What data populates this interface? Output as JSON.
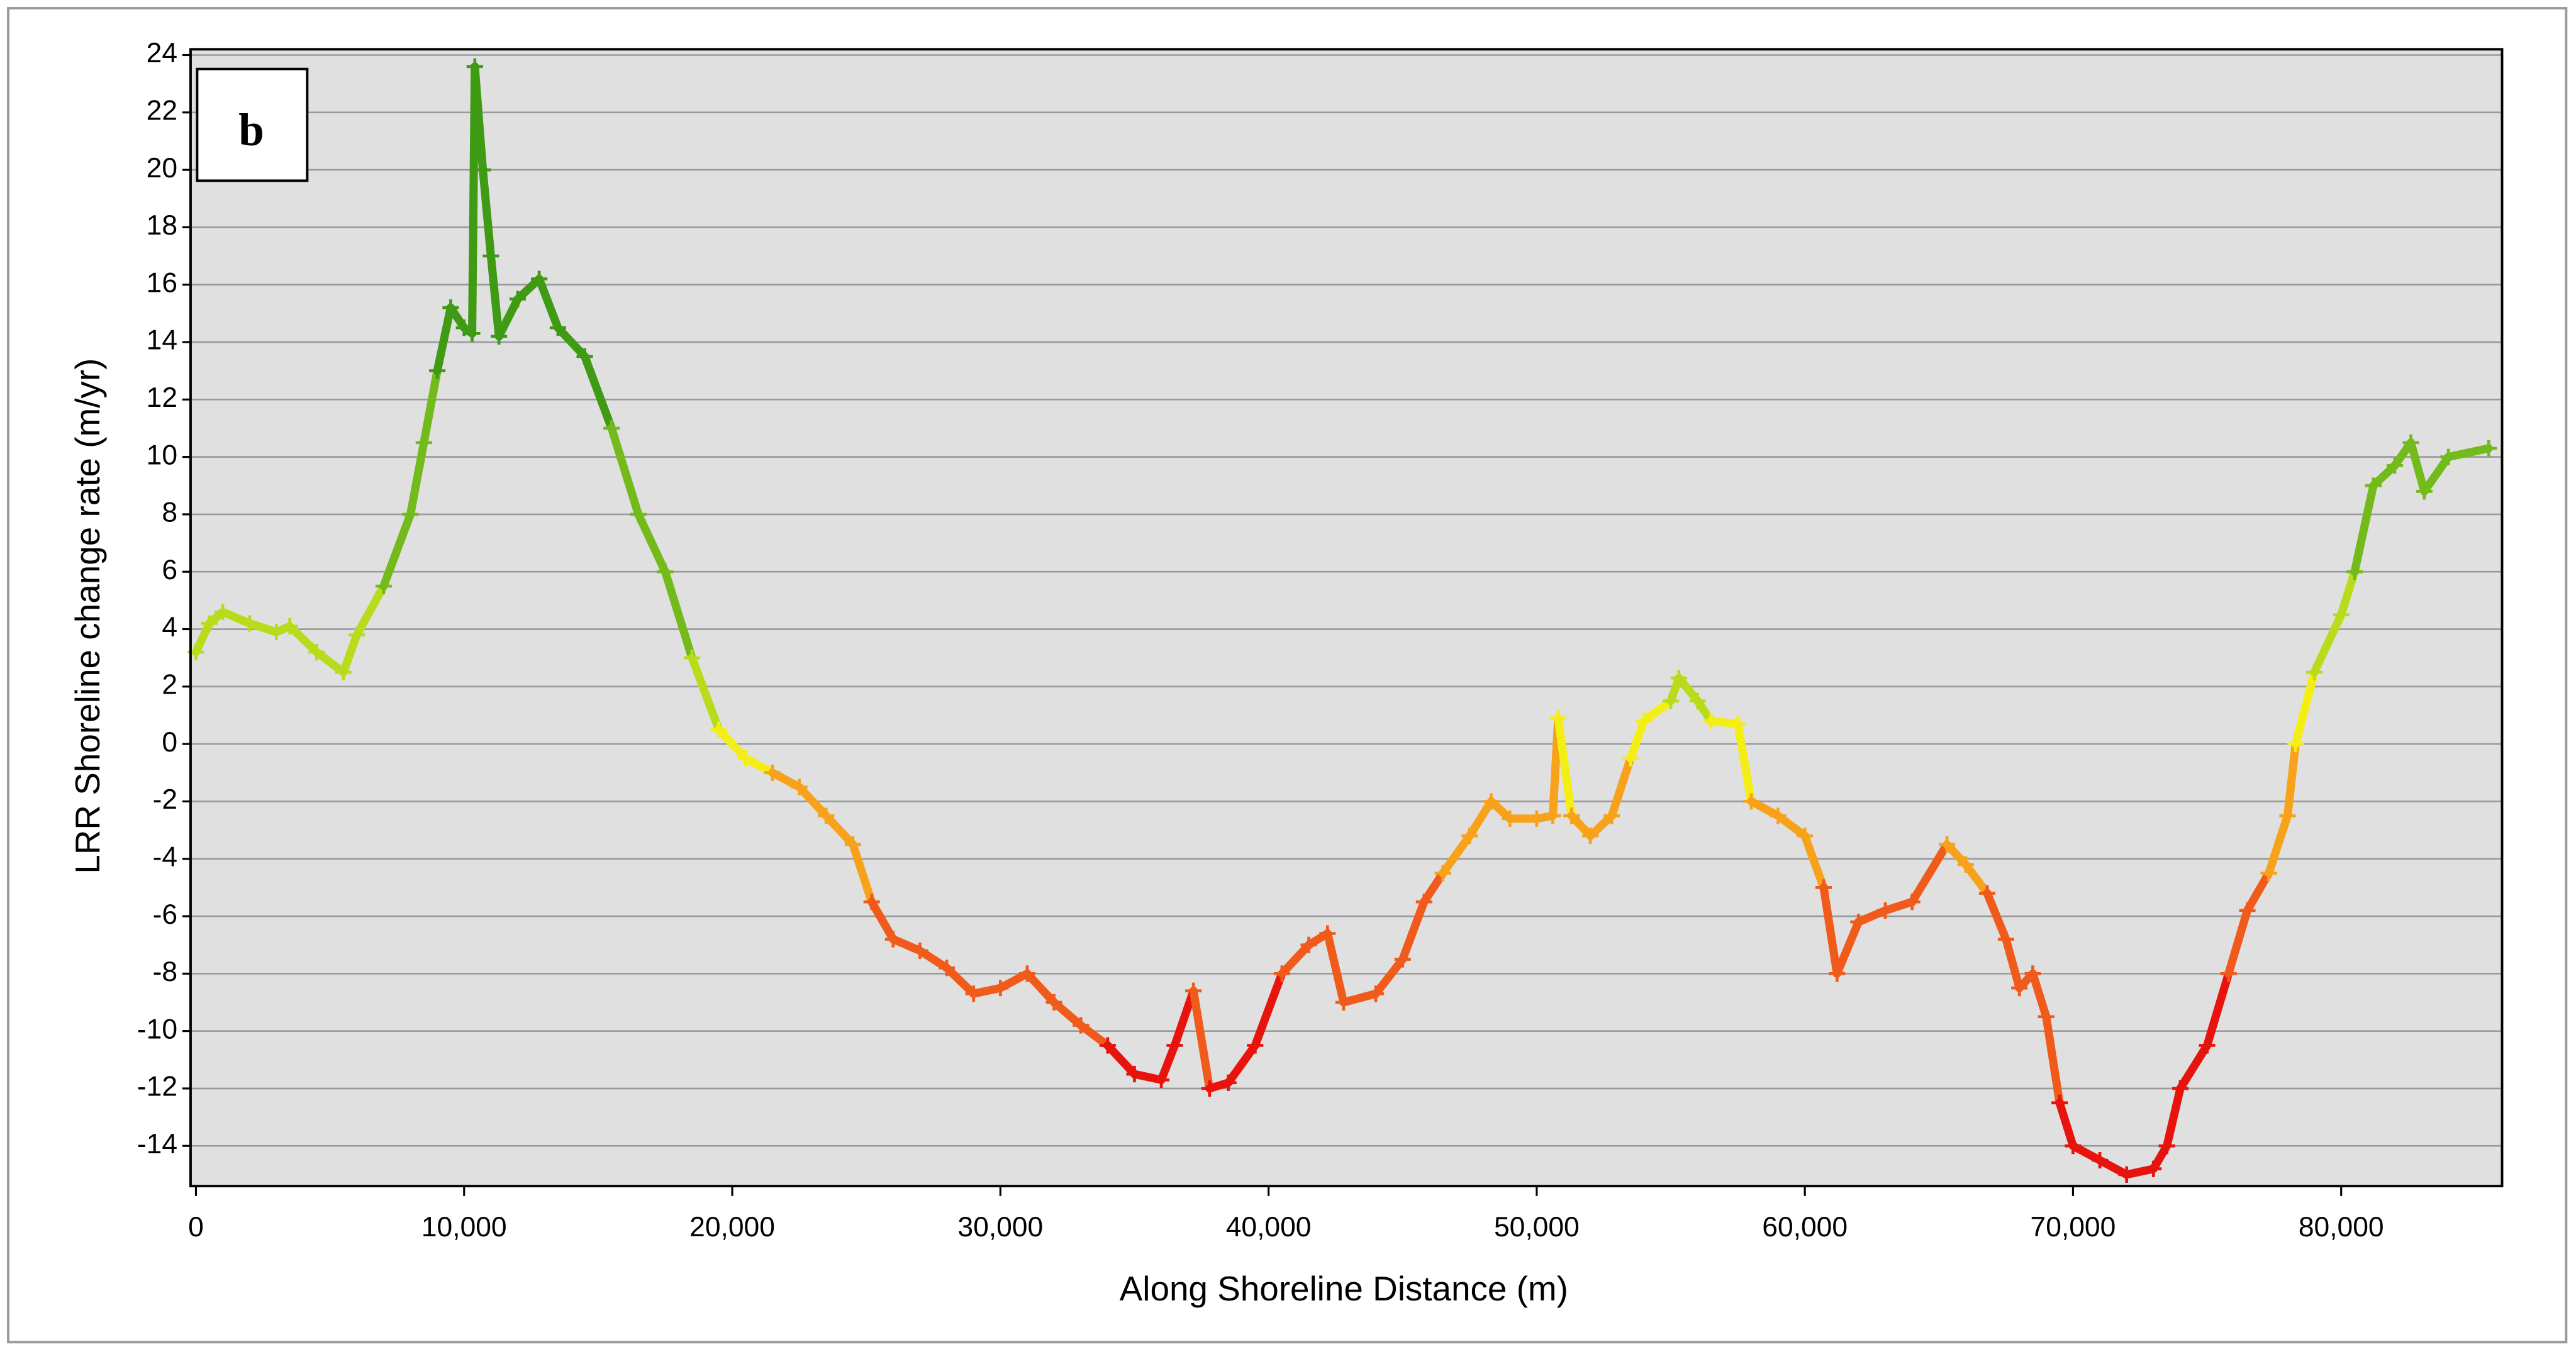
{
  "chart_data": {
    "type": "scatter",
    "panel_label": "b",
    "xlabel": "Along Shoreline Distance (m)",
    "ylabel": "LRR Shoreline change rate (m/yr)",
    "xlim": [
      -200,
      86000
    ],
    "ylim": [
      -15.4,
      24.2
    ],
    "xticks": [
      0,
      {
        "value": 10000,
        "label": "10,000"
      },
      {
        "value": 20000,
        "label": "20,000"
      },
      {
        "value": 30000,
        "label": "30,000"
      },
      {
        "value": 40000,
        "label": "40,000"
      },
      {
        "value": 50000,
        "label": "50,000"
      },
      {
        "value": 60000,
        "label": "60,000"
      },
      {
        "value": 70000,
        "label": "70,000"
      },
      {
        "value": 80000,
        "label": "80,000"
      }
    ],
    "yticks": [
      -14,
      -12,
      -10,
      -8,
      -6,
      -4,
      -2,
      0,
      2,
      4,
      6,
      8,
      10,
      12,
      14,
      16,
      18,
      20,
      22,
      24
    ],
    "grid": true,
    "x": [
      0,
      500,
      1000,
      2000,
      3000,
      3500,
      4500,
      5500,
      6000,
      7000,
      8000,
      8500,
      9000,
      9500,
      10000,
      10300,
      10400,
      10700,
      11000,
      11300,
      12000,
      12800,
      13500,
      14500,
      15500,
      16500,
      17500,
      18500,
      19500,
      20500,
      21500,
      22500,
      23500,
      24500,
      25200,
      26000,
      27000,
      28000,
      29000,
      30000,
      31000,
      32000,
      33000,
      34000,
      35000,
      36000,
      36500,
      37200,
      37800,
      38500,
      39500,
      40500,
      41500,
      42200,
      42800,
      44000,
      45000,
      45800,
      46500,
      47500,
      48300,
      49000,
      50000,
      50600,
      50800,
      51300,
      52000,
      52800,
      53500,
      54000,
      55000,
      55300,
      56000,
      56500,
      57500,
      58000,
      59000,
      60000,
      60700,
      61200,
      62000,
      63000,
      64000,
      65300,
      66000,
      66800,
      67500,
      68000,
      68500,
      69000,
      69500,
      70000,
      71000,
      72000,
      73000,
      73500,
      74000,
      75000,
      75800,
      76500,
      77300,
      78000,
      78300,
      79000,
      80000,
      80500,
      81200,
      82000,
      82600,
      83100,
      84000,
      85500
    ],
    "values": [
      3.2,
      4.2,
      4.6,
      4.2,
      3.9,
      4.1,
      3.2,
      2.5,
      3.8,
      5.5,
      8,
      10.5,
      13,
      15.2,
      14.5,
      14.3,
      23.6,
      20,
      17,
      14.2,
      15.5,
      16.2,
      14.5,
      13.5,
      11,
      8,
      6,
      3,
      0.5,
      -0.5,
      -1,
      -1.5,
      -2.5,
      -3.5,
      -5.5,
      -6.8,
      -7.2,
      -7.8,
      -8.7,
      -8.5,
      -8,
      -9,
      -9.8,
      -10.5,
      -11.5,
      -11.7,
      -10.5,
      -8.6,
      -12,
      -11.8,
      -10.5,
      -8,
      -7,
      -6.6,
      -9,
      -8.7,
      -7.5,
      -5.5,
      -4.5,
      -3.2,
      -2,
      -2.6,
      -2.6,
      -2.5,
      0.9,
      -2.5,
      -3.2,
      -2.5,
      -0.5,
      0.8,
      1.5,
      2.3,
      1.5,
      0.8,
      0.7,
      -2,
      -2.5,
      -3.2,
      -5,
      -8,
      -6.2,
      -5.8,
      -5.5,
      -3.5,
      -4.2,
      -5.2,
      -6.8,
      -8.5,
      -8,
      -9.5,
      -12.5,
      -14,
      -14.5,
      -15,
      -14.8,
      -14,
      -12,
      -10.5,
      -8,
      -5.8,
      -4.5,
      -2.5,
      0,
      2.5,
      4.5,
      6,
      9,
      9.7,
      10.5,
      8.8,
      10,
      10.3
    ],
    "colors": [
      "#b8dc1c",
      "#b8dc1c",
      "#b8dc1c",
      "#b8dc1c",
      "#b8dc1c",
      "#b8dc1c",
      "#b8dc1c",
      "#b8dc1c",
      "#b8dc1c",
      "#72bb1a",
      "#72bb1a",
      "#72bb1a",
      "#3f9a14",
      "#3f9a14",
      "#3f9a14",
      "#3f9a14",
      "#3f9a14",
      "#3f9a14",
      "#3f9a14",
      "#3f9a14",
      "#3f9a14",
      "#3f9a14",
      "#3f9a14",
      "#3f9a14",
      "#72bb1a",
      "#72bb1a",
      "#72bb1a",
      "#b8dc1c",
      "#f4ee12",
      "#f4ee12",
      "#f7a21a",
      "#f7a21a",
      "#f7a21a",
      "#f7a21a",
      "#f05a1a",
      "#f05a1a",
      "#f05a1a",
      "#f05a1a",
      "#f05a1a",
      "#f05a1a",
      "#f05a1a",
      "#f05a1a",
      "#f05a1a",
      "#e8130c",
      "#e8130c",
      "#e8130c",
      "#e8130c",
      "#f05a1a",
      "#e8130c",
      "#e8130c",
      "#e8130c",
      "#f05a1a",
      "#f05a1a",
      "#f05a1a",
      "#f05a1a",
      "#f05a1a",
      "#f05a1a",
      "#f05a1a",
      "#f7a21a",
      "#f7a21a",
      "#f7a21a",
      "#f7a21a",
      "#f7a21a",
      "#f7a21a",
      "#f4ee12",
      "#f7a21a",
      "#f7a21a",
      "#f7a21a",
      "#f4ee12",
      "#f4ee12",
      "#b8dc1c",
      "#b8dc1c",
      "#b8dc1c",
      "#f4ee12",
      "#f4ee12",
      "#f7a21a",
      "#f7a21a",
      "#f7a21a",
      "#f05a1a",
      "#f05a1a",
      "#f05a1a",
      "#f05a1a",
      "#f05a1a",
      "#f7a21a",
      "#f7a21a",
      "#f05a1a",
      "#f05a1a",
      "#f05a1a",
      "#f05a1a",
      "#f05a1a",
      "#e8130c",
      "#e8130c",
      "#e8130c",
      "#e8130c",
      "#e8130c",
      "#e8130c",
      "#e8130c",
      "#e8130c",
      "#f05a1a",
      "#f05a1a",
      "#f7a21a",
      "#f7a21a",
      "#f4ee12",
      "#b8dc1c",
      "#b8dc1c",
      "#72bb1a",
      "#72bb1a",
      "#72bb1a",
      "#72bb1a",
      "#72bb1a",
      "#72bb1a",
      "#72bb1a"
    ]
  }
}
